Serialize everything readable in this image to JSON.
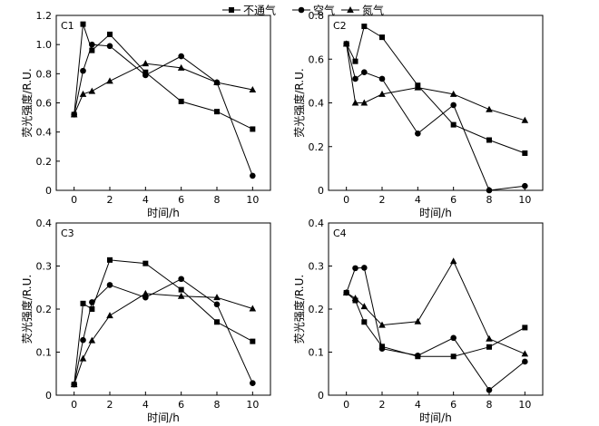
{
  "legend": [
    {
      "label": "不通气",
      "marker": "square"
    },
    {
      "label": "空气",
      "marker": "circle"
    },
    {
      "label": "氮气",
      "marker": "triangle"
    }
  ],
  "chart_data": [
    {
      "type": "line",
      "panel_label": "C1",
      "xlabel": "时间/h",
      "ylabel": "荧光强度/R.U.",
      "xlim": [
        -1,
        11
      ],
      "ylim": [
        0,
        1.2
      ],
      "xticks": [
        0,
        2,
        4,
        6,
        8,
        10
      ],
      "yticks": [
        0,
        0.2,
        0.4,
        0.6,
        0.8,
        1.0,
        1.2
      ],
      "ytick_labels": [
        "0",
        "0.2",
        "0.4",
        "0.6",
        "0.8",
        "1.0",
        "1.2"
      ],
      "series": [
        {
          "name": "不通气",
          "marker": "square",
          "x": [
            0,
            0.5,
            1,
            2,
            4,
            6,
            8,
            10
          ],
          "y": [
            0.52,
            1.14,
            0.96,
            1.07,
            0.81,
            0.61,
            0.54,
            0.42
          ]
        },
        {
          "name": "空气",
          "marker": "circle",
          "x": [
            0,
            0.5,
            1,
            2,
            4,
            6,
            8,
            10
          ],
          "y": [
            0.52,
            0.82,
            1.0,
            0.99,
            0.79,
            0.92,
            0.74,
            0.1
          ]
        },
        {
          "name": "氮气",
          "marker": "triangle",
          "x": [
            0,
            0.5,
            1,
            2,
            4,
            6,
            8,
            10
          ],
          "y": [
            0.52,
            0.66,
            0.68,
            0.75,
            0.87,
            0.84,
            0.74,
            0.69
          ]
        }
      ]
    },
    {
      "type": "line",
      "panel_label": "C2",
      "xlabel": "时间/h",
      "ylabel": "荧光强度/R.U.",
      "xlim": [
        -1,
        11
      ],
      "ylim": [
        0,
        0.8
      ],
      "xticks": [
        0,
        2,
        4,
        6,
        8,
        10
      ],
      "yticks": [
        0,
        0.2,
        0.4,
        0.6,
        0.8
      ],
      "ytick_labels": [
        "0",
        "0.2",
        "0.4",
        "0.6",
        "0.8"
      ],
      "series": [
        {
          "name": "不通气",
          "marker": "square",
          "x": [
            0,
            0.5,
            1,
            2,
            4,
            6,
            8,
            10
          ],
          "y": [
            0.67,
            0.59,
            0.75,
            0.7,
            0.48,
            0.3,
            0.23,
            0.17
          ]
        },
        {
          "name": "空气",
          "marker": "circle",
          "x": [
            0,
            0.5,
            1,
            2,
            4,
            6,
            8,
            10
          ],
          "y": [
            0.67,
            0.51,
            0.54,
            0.51,
            0.26,
            0.39,
            0.0,
            0.02
          ]
        },
        {
          "name": "氮气",
          "marker": "triangle",
          "x": [
            0,
            0.5,
            1,
            2,
            4,
            6,
            8,
            10
          ],
          "y": [
            0.67,
            0.4,
            0.4,
            0.44,
            0.47,
            0.44,
            0.37,
            0.32
          ]
        }
      ]
    },
    {
      "type": "line",
      "panel_label": "C3",
      "xlabel": "时间/h",
      "ylabel": "荧光强度/R.U.",
      "xlim": [
        -1,
        11
      ],
      "ylim": [
        0,
        0.4
      ],
      "xticks": [
        0,
        2,
        4,
        6,
        8,
        10
      ],
      "yticks": [
        0,
        0.1,
        0.2,
        0.3,
        0.4
      ],
      "ytick_labels": [
        "0",
        "0.1",
        "0.2",
        "0.3",
        "0.4"
      ],
      "series": [
        {
          "name": "不通气",
          "marker": "square",
          "x": [
            0,
            0.5,
            1,
            2,
            4,
            6,
            8,
            10
          ],
          "y": [
            0.025,
            0.213,
            0.2,
            0.314,
            0.306,
            0.245,
            0.17,
            0.125
          ]
        },
        {
          "name": "空气",
          "marker": "circle",
          "x": [
            0,
            0.5,
            1,
            2,
            4,
            6,
            8,
            10
          ],
          "y": [
            0.025,
            0.128,
            0.216,
            0.256,
            0.227,
            0.27,
            0.211,
            0.028
          ]
        },
        {
          "name": "氮气",
          "marker": "triangle",
          "x": [
            0,
            0.5,
            1,
            2,
            4,
            6,
            8,
            10
          ],
          "y": [
            0.025,
            0.085,
            0.127,
            0.185,
            0.236,
            0.23,
            0.227,
            0.201
          ]
        }
      ]
    },
    {
      "type": "line",
      "panel_label": "C4",
      "xlabel": "时间/h",
      "ylabel": "荧光强度/R.U.",
      "xlim": [
        -1,
        11
      ],
      "ylim": [
        0,
        0.4
      ],
      "xticks": [
        0,
        2,
        4,
        6,
        8,
        10
      ],
      "yticks": [
        0,
        0.1,
        0.2,
        0.3,
        0.4
      ],
      "ytick_labels": [
        "0",
        "0.1",
        "0.2",
        "0.3",
        "0.4"
      ],
      "series": [
        {
          "name": "不通气",
          "marker": "square",
          "x": [
            0,
            0.5,
            1,
            2,
            4,
            6,
            8,
            10
          ],
          "y": [
            0.238,
            0.22,
            0.17,
            0.113,
            0.09,
            0.09,
            0.112,
            0.157
          ]
        },
        {
          "name": "空气",
          "marker": "circle",
          "x": [
            0,
            0.5,
            1,
            2,
            4,
            6,
            8,
            10
          ],
          "y": [
            0.238,
            0.295,
            0.296,
            0.108,
            0.092,
            0.133,
            0.012,
            0.078
          ]
        },
        {
          "name": "氮气",
          "marker": "triangle",
          "x": [
            0,
            0.5,
            1,
            2,
            4,
            6,
            8,
            10
          ],
          "y": [
            0.238,
            0.225,
            0.206,
            0.163,
            0.171,
            0.311,
            0.131,
            0.096
          ]
        }
      ]
    }
  ]
}
